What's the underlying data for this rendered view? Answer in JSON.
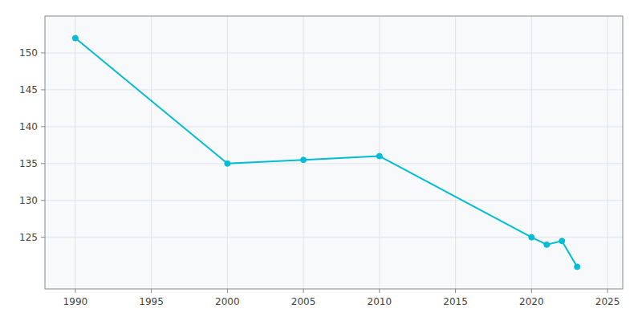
{
  "chart_data": {
    "type": "line",
    "x": [
      1990,
      2000,
      2005,
      2010,
      2020,
      2021,
      2022,
      2023
    ],
    "values": [
      152,
      135,
      135.5,
      136,
      125,
      124,
      124.5,
      121
    ],
    "color": "#00bcd4",
    "marker": "circle",
    "xlim": [
      1988,
      2026
    ],
    "ylim": [
      118,
      155
    ],
    "xticks": [
      1990,
      1995,
      2000,
      2005,
      2010,
      2015,
      2020,
      2025
    ],
    "yticks": [
      125,
      130,
      135,
      140,
      145,
      150
    ],
    "grid": true
  }
}
